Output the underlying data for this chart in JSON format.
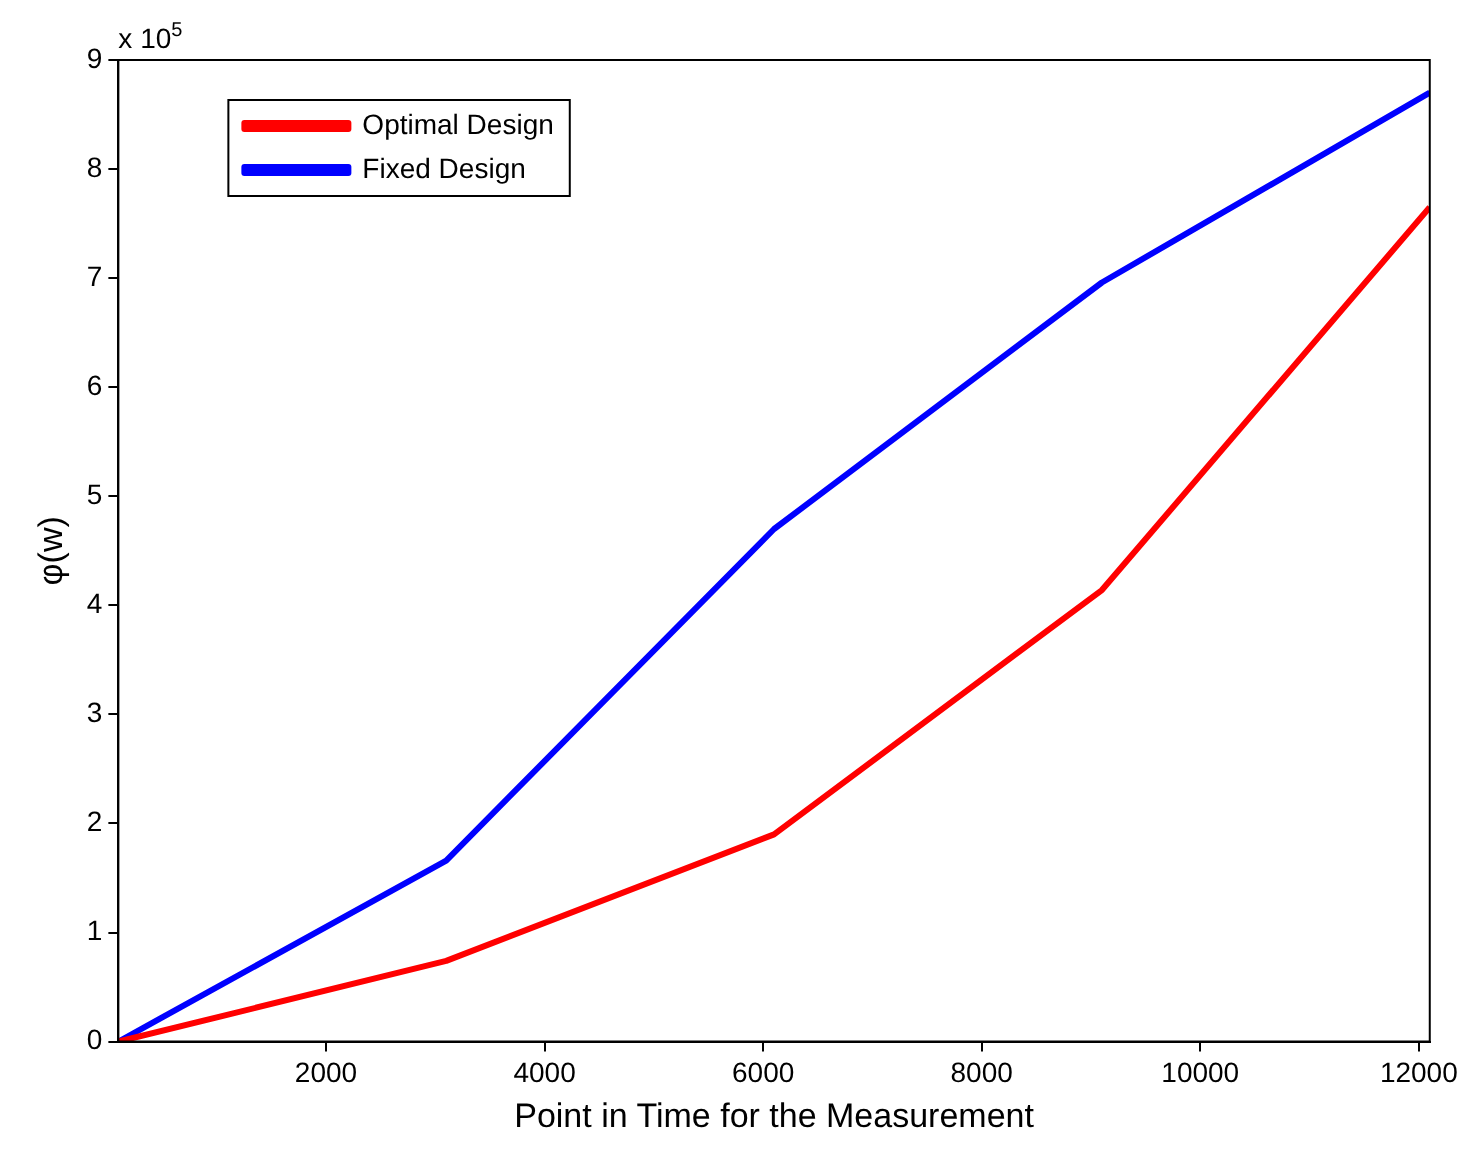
{
  "chart_data": {
    "type": "line",
    "xlabel": "Point in Time for the Measurement",
    "ylabel": "φ(w)",
    "annotations": [
      "x 10$^{5}$"
    ],
    "x": [
      100,
      3100,
      6100,
      9100,
      12100
    ],
    "series": [
      {
        "name": "Optimal Design",
        "color": "#ff0000",
        "values": [
          0,
          0.74,
          1.9,
          4.14,
          7.65
        ]
      },
      {
        "name": "Fixed Design",
        "color": "#0000ff",
        "values": [
          0,
          1.66,
          4.7,
          6.96,
          8.7
        ]
      }
    ],
    "xlim": [
      100,
      12100
    ],
    "xticks": [
      2000,
      4000,
      6000,
      8000,
      10000,
      12000
    ],
    "ylim": [
      0,
      9
    ],
    "yticks": [
      0,
      1,
      2,
      3,
      4,
      5,
      6,
      7,
      8,
      9
    ],
    "grid": false,
    "legend": "top left",
    "marker": "none",
    "line_style": "solid"
  }
}
